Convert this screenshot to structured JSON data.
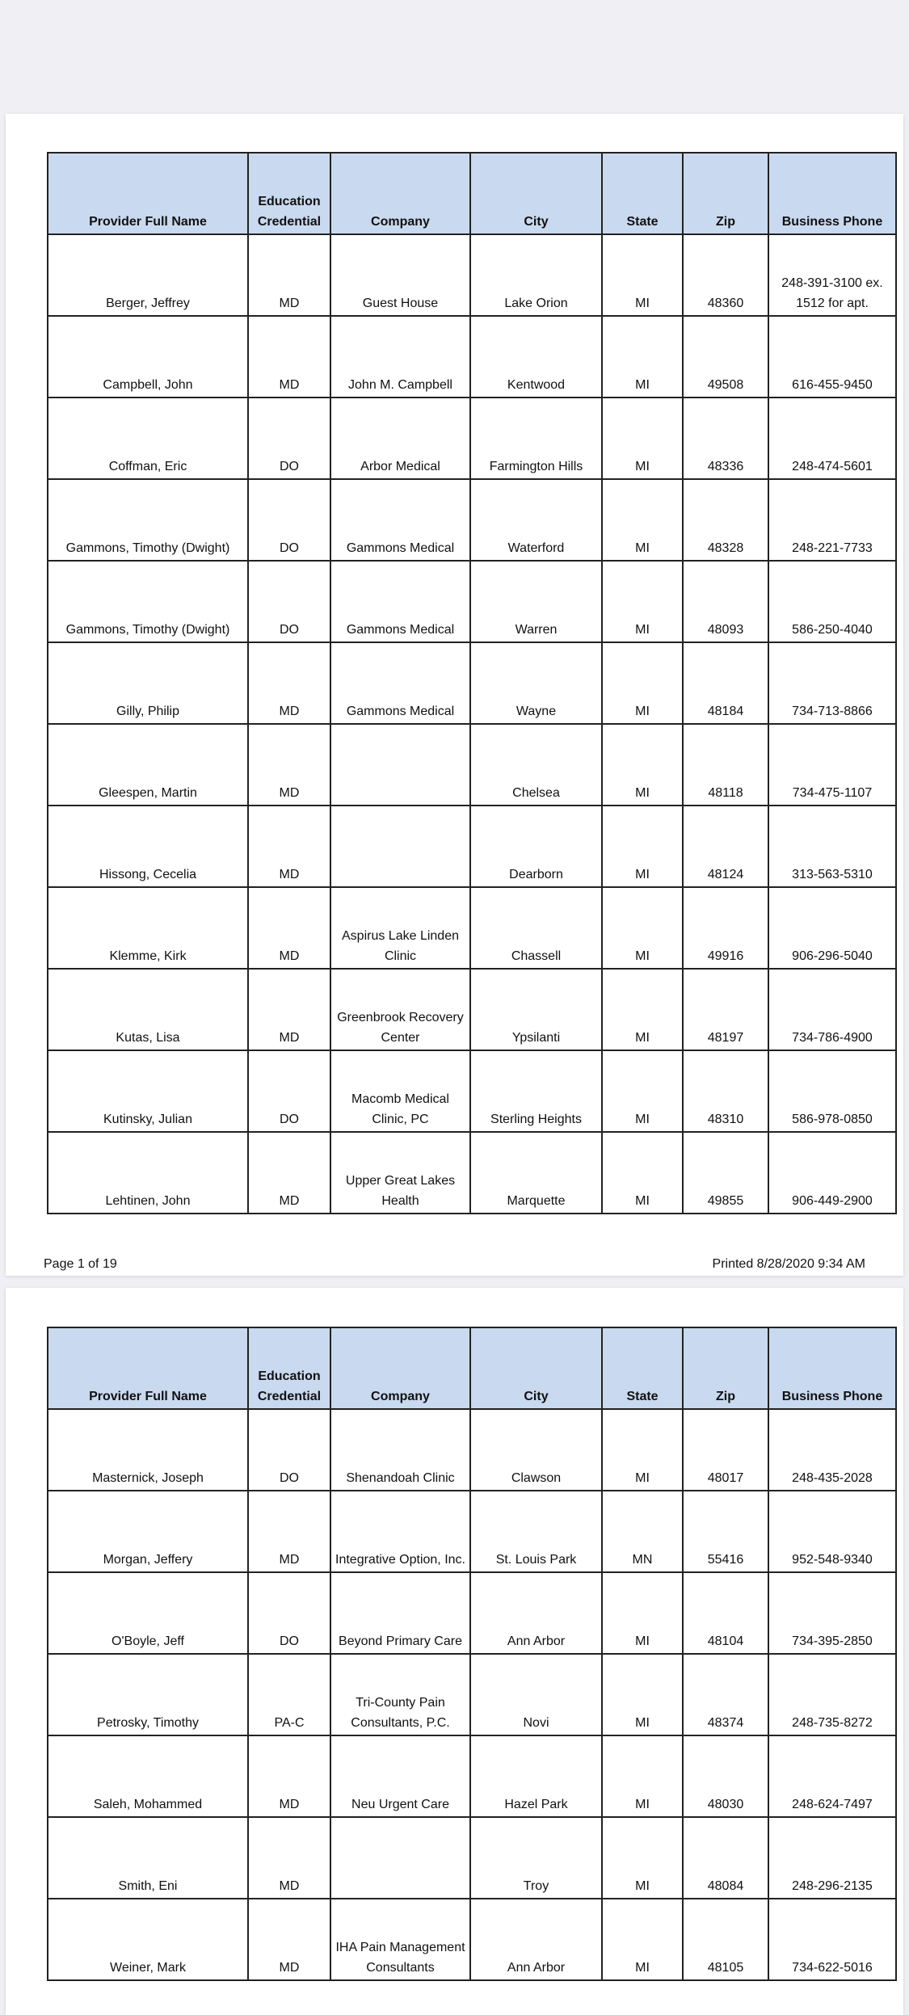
{
  "columns": [
    "Provider Full Name",
    "Education Credential",
    "Company",
    "City",
    "State",
    "Zip",
    "Business Phone"
  ],
  "pages": [
    {
      "rows": [
        [
          "Berger, Jeffrey",
          "MD",
          "Guest House",
          "Lake Orion",
          "MI",
          "48360",
          "248-391-3100 ex. 1512 for apt."
        ],
        [
          "Campbell, John",
          "MD",
          "John M. Campbell",
          "Kentwood",
          "MI",
          "49508",
          "616-455-9450"
        ],
        [
          "Coffman, Eric",
          "DO",
          "Arbor Medical",
          "Farmington Hills",
          "MI",
          "48336",
          "248-474-5601"
        ],
        [
          "Gammons, Timothy (Dwight)",
          "DO",
          "Gammons Medical",
          "Waterford",
          "MI",
          "48328",
          "248-221-7733"
        ],
        [
          "Gammons, Timothy (Dwight)",
          "DO",
          "Gammons Medical",
          "Warren",
          "MI",
          "48093",
          "586-250-4040"
        ],
        [
          "Gilly, Philip",
          "MD",
          "Gammons Medical",
          "Wayne",
          "MI",
          "48184",
          "734-713-8866"
        ],
        [
          "Gleespen, Martin",
          "MD",
          "",
          "Chelsea",
          "MI",
          "48118",
          "734-475-1107"
        ],
        [
          "Hissong, Cecelia",
          "MD",
          "",
          "Dearborn",
          "MI",
          "48124",
          "313-563-5310"
        ],
        [
          "Klemme, Kirk",
          "MD",
          "Aspirus Lake Linden Clinic",
          "Chassell",
          "MI",
          "49916",
          "906-296-5040"
        ],
        [
          "Kutas, Lisa",
          "MD",
          "Greenbrook Recovery Center",
          "Ypsilanti",
          "MI",
          "48197",
          "734-786-4900"
        ],
        [
          "Kutinsky, Julian",
          "DO",
          "Macomb Medical Clinic, PC",
          "Sterling Heights",
          "MI",
          "48310",
          "586-978-0850"
        ],
        [
          "Lehtinen, John",
          "MD",
          "Upper Great Lakes Health",
          "Marquette",
          "MI",
          "49855",
          "906-449-2900"
        ]
      ],
      "footer_left": "Page 1 of 19",
      "footer_right": "Printed 8/28/2020 9:34 AM"
    },
    {
      "rows": [
        [
          "Masternick, Joseph",
          "DO",
          "Shenandoah Clinic",
          "Clawson",
          "MI",
          "48017",
          "248-435-2028"
        ],
        [
          "Morgan, Jeffery",
          "MD",
          "Integrative Option, Inc.",
          "St. Louis Park",
          "MN",
          "55416",
          "952-548-9340"
        ],
        [
          "O'Boyle, Jeff",
          "DO",
          "Beyond Primary Care",
          "Ann Arbor",
          "MI",
          "48104",
          "734-395-2850"
        ],
        [
          "Petrosky, Timothy",
          "PA-C",
          "Tri-County Pain Consultants, P.C.",
          "Novi",
          "MI",
          "48374",
          "248-735-8272"
        ],
        [
          "Saleh, Mohammed",
          "MD",
          "Neu Urgent Care",
          "Hazel Park",
          "MI",
          "48030",
          "248-624-7497"
        ],
        [
          "Smith, Eni",
          "MD",
          "",
          "Troy",
          "MI",
          "48084",
          "248-296-2135"
        ],
        [
          "Weiner, Mark",
          "MD",
          "IHA Pain Management Consultants",
          "Ann Arbor",
          "MI",
          "48105",
          "734-622-5016"
        ]
      ]
    }
  ],
  "colors": {
    "header_bg": "#c9d9ef",
    "viewer_bg": "#efeff4"
  }
}
